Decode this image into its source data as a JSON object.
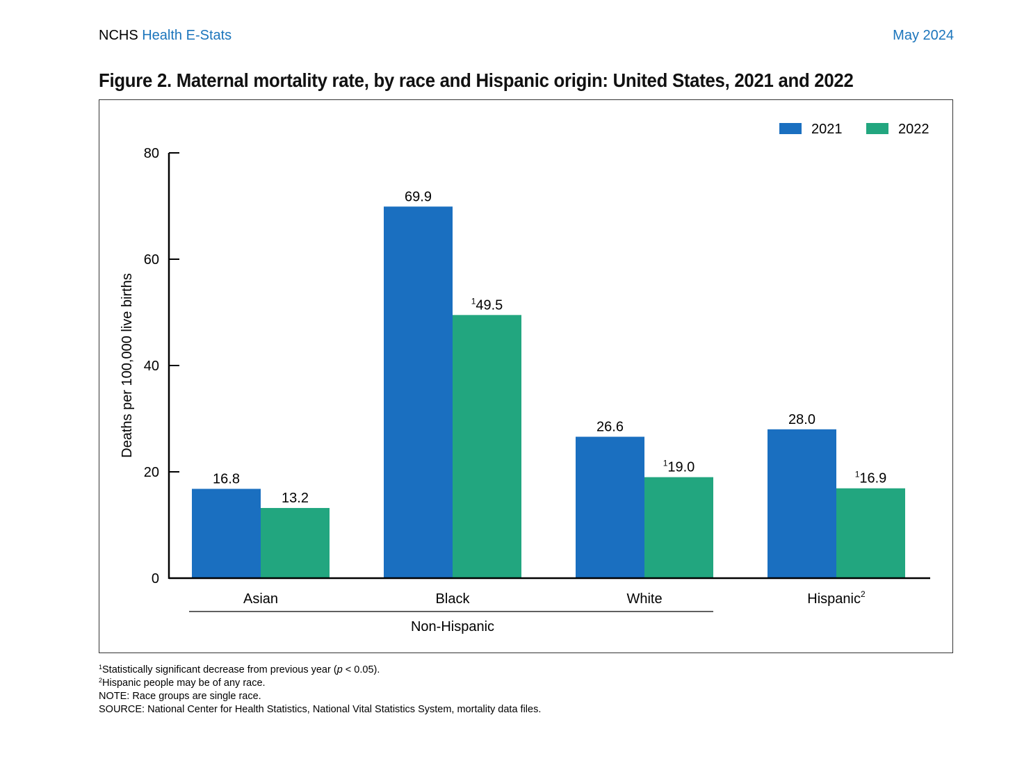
{
  "header": {
    "org": "NCHS",
    "series": "Health E-Stats",
    "date": "May 2024"
  },
  "figure": {
    "title": "Figure 2. Maternal mortality rate, by race and Hispanic origin: United States, 2021 and 2022"
  },
  "colors": {
    "series_2021": "#1a6fc0",
    "series_2022": "#22a67f",
    "accent_link": "#1b75bc"
  },
  "chart_data": {
    "type": "bar",
    "categories": [
      "Asian",
      "Black",
      "White",
      "Hispanic"
    ],
    "category_superscripts": [
      "",
      "",
      "",
      "2"
    ],
    "group_label": "Non-Hispanic",
    "group_members": [
      "Asian",
      "Black",
      "White"
    ],
    "series": [
      {
        "name": "2021",
        "values": [
          16.8,
          69.9,
          26.6,
          28.0
        ],
        "labels": [
          "16.8",
          "69.9",
          "26.6",
          "28.0"
        ],
        "label_superscripts": [
          "",
          "",
          "",
          ""
        ]
      },
      {
        "name": "2022",
        "values": [
          13.2,
          49.5,
          19.0,
          16.9
        ],
        "labels": [
          "13.2",
          "49.5",
          "19.0",
          "16.9"
        ],
        "label_superscripts": [
          "",
          "1",
          "1",
          "1"
        ]
      }
    ],
    "ylabel": "Deaths per 100,000 live births",
    "xlabel": "",
    "ylim": [
      0,
      80
    ],
    "yticks": [
      0,
      20,
      40,
      60,
      80
    ],
    "grid": false,
    "legend_position": "top-right"
  },
  "footnotes": {
    "note1_sup": "1",
    "note1_pre": "Statistically significant decrease from previous year (",
    "note1_p": "p",
    "note1_post": " < 0.05).",
    "note2_sup": "2",
    "note2_text": "Hispanic people may be of any race.",
    "note3_text": "NOTE: Race groups are single race.",
    "note4_text": "SOURCE: National Center for Health Statistics, National Vital Statistics System, mortality data files."
  }
}
